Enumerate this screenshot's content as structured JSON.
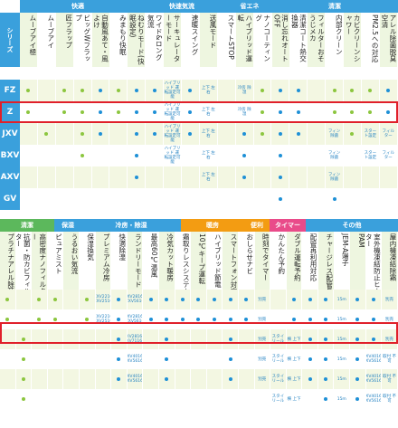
{
  "colors": {
    "blue": "#1e90d6",
    "green": "#8cc63f",
    "header_blue": "#3aa0dc",
    "header_green": "#5cb85c",
    "header_orange": "#f39c12",
    "header_pink": "#e94b8a",
    "highlight": "#e0202a",
    "stripe": "#f3f7e2"
  },
  "top": {
    "groups": [
      {
        "label": "快適",
        "color": "#3aa0dc"
      },
      {
        "label": "快速気流",
        "color": "#3aa0dc"
      },
      {
        "label": "省エネ",
        "color": "#3aa0dc"
      },
      {
        "label": "清潔",
        "color": "#3aa0dc"
      }
    ],
    "series_label": "シリーズ",
    "headers": [
      "ムーブアイ極",
      "ムーブアイ",
      "匠フラップ",
      "ビッグWフラップ",
      "自動風あて・風よけ",
      "みまもり快眠",
      "ねむりモード(快眠設定)",
      "ワイド&ロング気流",
      "サーキュレーターモード",
      "速暖スイング",
      "送風モード",
      "スマートSTOP",
      "ハイブリッド運転",
      "ナノコーティング",
      "消し忘れオートOFF",
      "清潔コート熱交換器",
      "フィルターおそうじメカ",
      "内部クリーン",
      "カビクリーンシャワー",
      "PM2.5への対応",
      "アレル除菌脱臭空清"
    ],
    "rows": [
      {
        "label": "FZ",
        "color": "#3aa0dc"
      },
      {
        "label": "Z",
        "color": "#3aa0dc"
      },
      {
        "label": "JXV",
        "color": "#3aa0dc"
      },
      {
        "label": "BXV",
        "color": "#3aa0dc"
      },
      {
        "label": "AXV",
        "color": "#3aa0dc"
      },
      {
        "label": "GV",
        "color": "#3aa0dc"
      }
    ]
  },
  "bottom": {
    "groups": [
      {
        "label": "清潔",
        "color": "#5cb85c"
      },
      {
        "label": "保湿",
        "color": "#3aa0dc"
      },
      {
        "label": "冷房・除湿",
        "color": "#3aa0dc"
      },
      {
        "label": "暖房",
        "color": "#f39c12"
      },
      {
        "label": "便利",
        "color": "#f39c12"
      },
      {
        "label": "タイマー",
        "color": "#e94b8a"
      },
      {
        "label": "その他",
        "color": "#3aa0dc"
      }
    ],
    "headers": [
      "プラチナアレル除菌",
      "抗菌・防カビフィルター",
      "高密度ナノフィルター",
      "ピュアミスト",
      "うるおい気流",
      "保湿換気",
      "プレミアム冷房",
      "快適除湿",
      "ランドリーモード",
      "最高60℃温風",
      "冷気カット暖房",
      "霜取りレスシステム",
      "10℃キープ運転",
      "ハイブリッド節電",
      "スマートフォン対応",
      "おしらせナビ",
      "時刻でタイマー",
      "かんたん予約",
      "ダブル運転予約",
      "配管再利用対応",
      "チャージレス配管長",
      "JEM-A端子",
      "PAM",
      "室外機凍結防止ヒーター",
      "屋内機凍結除霜"
    ]
  },
  "cells": {
    "hybrid": "ハイブリッド\n運転設定可能",
    "vhigh": "上下\n左右",
    "cool": "冷房\n除湿",
    "yes": "別売",
    "charge": "15m",
    "model_a": "ZXV2216\nZXV2516",
    "model_b": "ZXV2816S\nZXV5616",
    "model_c": "JXV2816S\nJXV7116S",
    "model_d": "BXV4016S\nBXV5616S",
    "model_e": "AXV4016S\nAXV5616S",
    "staila": "スタイ\nリール",
    "yoko": "横\n上下",
    "torikae": "取付\n不可",
    "fin": "フィン\n除菌",
    "filter": "フィル\nター",
    "start": "スター\nト設定"
  }
}
